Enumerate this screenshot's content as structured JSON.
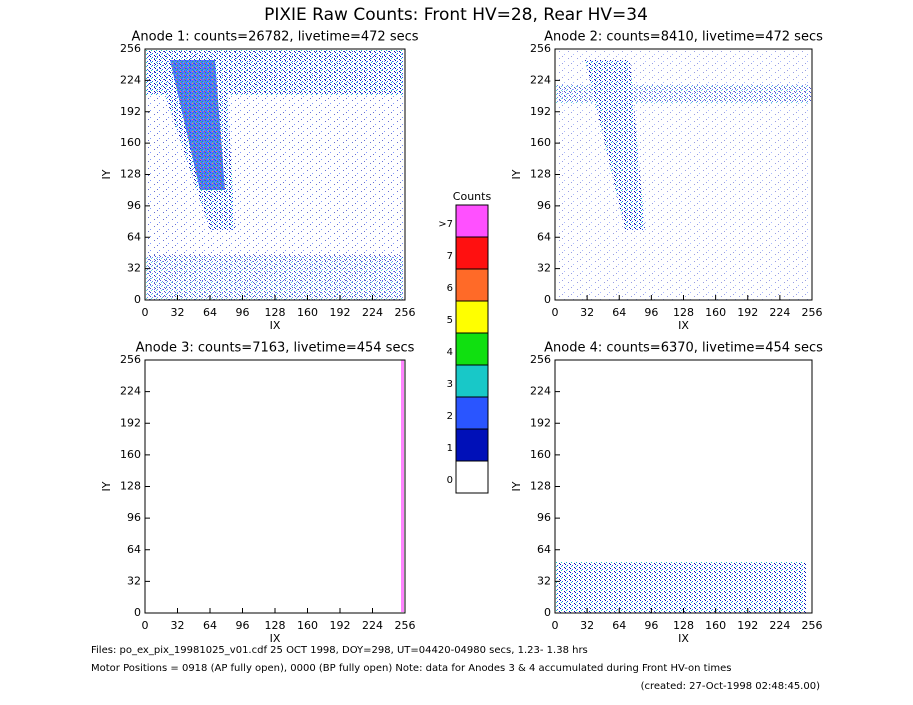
{
  "title": "PIXIE Raw Counts:  Front HV=28, Rear HV=34",
  "chart_data": [
    {
      "type": "heatmap",
      "title": "Anode 1: counts=26782, livetime=472 secs",
      "xlabel": "IX",
      "ylabel": "IY",
      "xlim": [
        0,
        256
      ],
      "ylim": [
        0,
        256
      ],
      "xticks": [
        0,
        32,
        64,
        96,
        128,
        160,
        192,
        224,
        256
      ],
      "yticks": [
        0,
        32,
        64,
        96,
        128,
        160,
        192,
        224,
        256
      ]
    },
    {
      "type": "heatmap",
      "title": "Anode 2: counts=8410, livetime=472 secs",
      "xlabel": "IX",
      "ylabel": "IY",
      "xlim": [
        0,
        256
      ],
      "ylim": [
        0,
        256
      ],
      "xticks": [
        0,
        32,
        64,
        96,
        128,
        160,
        192,
        224,
        256
      ],
      "yticks": [
        0,
        32,
        64,
        96,
        128,
        160,
        192,
        224,
        256
      ]
    },
    {
      "type": "heatmap",
      "title": "Anode 3: counts=7163, livetime=454 secs",
      "xlabel": "IX",
      "ylabel": "IY",
      "xlim": [
        0,
        256
      ],
      "ylim": [
        0,
        256
      ],
      "xticks": [
        0,
        32,
        64,
        96,
        128,
        160,
        192,
        224,
        256
      ],
      "yticks": [
        0,
        32,
        64,
        96,
        128,
        160,
        192,
        224,
        256
      ]
    },
    {
      "type": "heatmap",
      "title": "Anode 4: counts=6370, livetime=454 secs",
      "xlabel": "IX",
      "ylabel": "IY",
      "xlim": [
        0,
        256
      ],
      "ylim": [
        0,
        256
      ],
      "xticks": [
        0,
        32,
        64,
        96,
        128,
        160,
        192,
        224,
        256
      ],
      "yticks": [
        0,
        32,
        64,
        96,
        128,
        160,
        192,
        224,
        256
      ]
    }
  ],
  "colorbar": {
    "title": "Counts",
    "levels": [
      {
        "label": "0",
        "color": "#ffffff"
      },
      {
        "label": "1",
        "color": "#0010b8"
      },
      {
        "label": "2",
        "color": "#2a55ff"
      },
      {
        "label": "3",
        "color": "#18c8c8"
      },
      {
        "label": "4",
        "color": "#10e010"
      },
      {
        "label": "5",
        "color": "#ffff00"
      },
      {
        "label": "6",
        "color": "#ff6a28"
      },
      {
        "label": "7",
        "color": "#ff1010"
      },
      {
        "label": ">7",
        "color": "#ff50ff"
      }
    ]
  },
  "footer": [
    "Files: po_ex_pix_19981025_v01.cdf   25 OCT 1998, DOY=298, UT=04420-04980 secs,  1.23- 1.38 hrs",
    "Motor Positions = 0918 (AP fully open), 0000 (BP fully open)   Note: data for Anodes 3 & 4 accumulated during Front HV-on times",
    "(created: 27-Oct-1998 02:48:45.00)"
  ]
}
